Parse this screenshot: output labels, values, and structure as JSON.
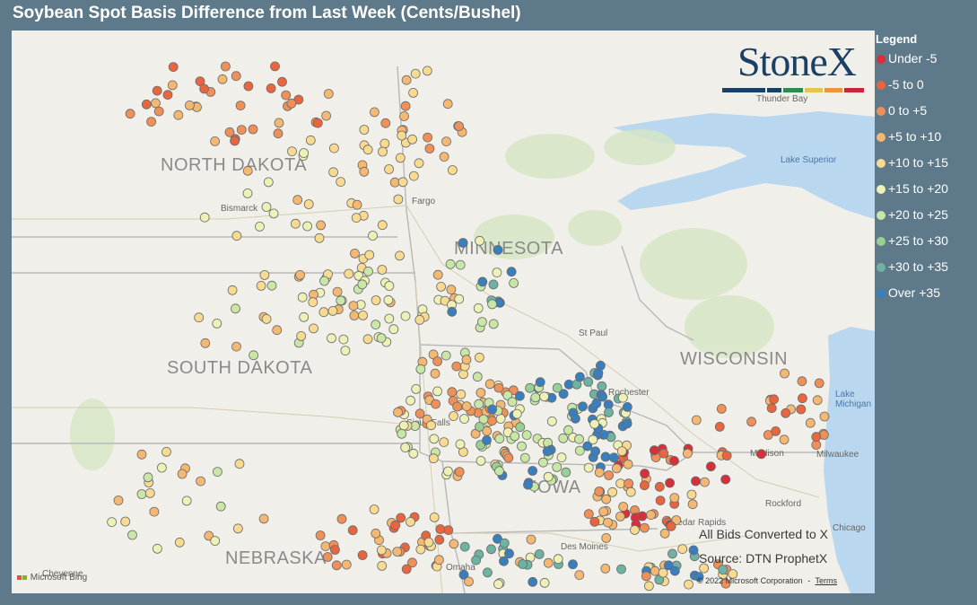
{
  "title": "Soybean Spot Basis Difference from Last Week (Cents/Bushel)",
  "legend": {
    "title": "Legend",
    "items": [
      {
        "label": "Under -5",
        "color": "#d7303a"
      },
      {
        "label": "-5 to 0",
        "color": "#e8663f"
      },
      {
        "label": "0 to +5",
        "color": "#ee9058"
      },
      {
        "label": "+5 to +10",
        "color": "#f5b872"
      },
      {
        "label": "+10 to +15",
        "color": "#f8db91"
      },
      {
        "label": "+15 to +20",
        "color": "#eef0b6"
      },
      {
        "label": "+20 to +25",
        "color": "#c8e6a6"
      },
      {
        "label": "+25 to +30",
        "color": "#99cf94"
      },
      {
        "label": "+30 to +35",
        "color": "#6eb2a2"
      },
      {
        "label": "Over +35",
        "color": "#3a7fbd"
      }
    ]
  },
  "logo": {
    "text": "StoneX",
    "bar_colors": [
      "#1c3f66",
      "#1c3f66",
      "#2f8a4f",
      "#e2c84a",
      "#e9963a",
      "#c8263b"
    ]
  },
  "map": {
    "states": [
      "NORTH DAKOTA",
      "MINNESOTA",
      "SOUTH DAKOTA",
      "WISCONSIN",
      "NEBRASKA",
      "IOWA"
    ],
    "cities": [
      "Bismarck",
      "Fargo",
      "St Paul",
      "Rochester",
      "Madison",
      "Milwaukee",
      "Rockford",
      "Chicago",
      "Thunder Bay",
      "Lake Superior",
      "Lake Michigan",
      "Omaha",
      "Cheyenne",
      "Sioux Falls",
      "Cedar Rapids",
      "Des Moines"
    ],
    "notes": [
      "All Bids Converted to X",
      "Source: DTN ProphetX"
    ],
    "copyright": "© 2022 Microsoft Corporation",
    "terms": "Terms",
    "attribution": "Microsoft Bing"
  }
}
